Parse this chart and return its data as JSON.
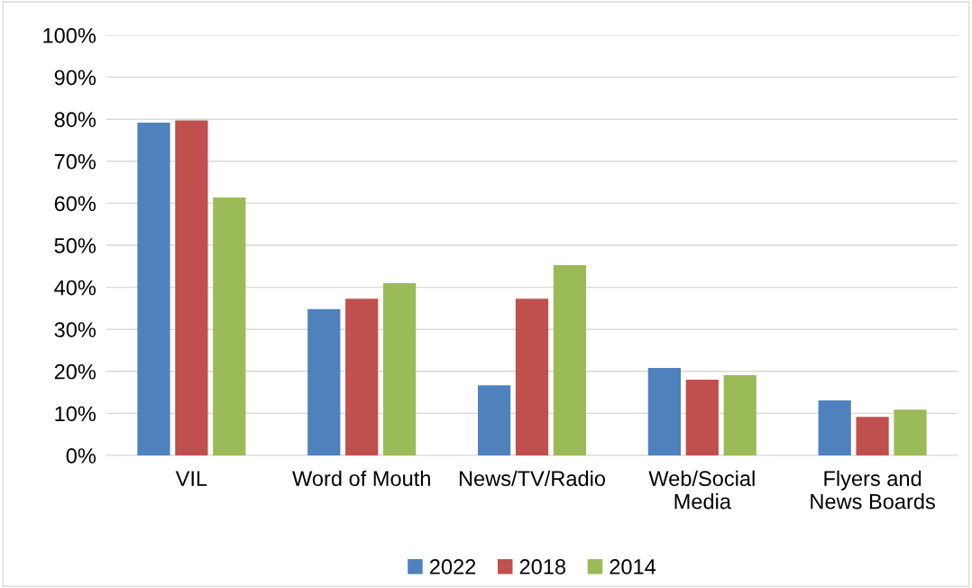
{
  "chart_data": {
    "type": "bar",
    "categories": [
      "VIL",
      "Word of Mouth",
      "News/TV/Radio",
      "Web/Social\nMedia",
      "Flyers and\nNews Boards"
    ],
    "series": [
      {
        "name": "2022",
        "color": "#4f81bd",
        "values": [
          79.2,
          34.8,
          16.7,
          20.8,
          13.1
        ]
      },
      {
        "name": "2018",
        "color": "#c0504d",
        "values": [
          79.7,
          37.3,
          37.3,
          18.0,
          9.2
        ]
      },
      {
        "name": "2014",
        "color": "#9bbb59",
        "values": [
          61.4,
          41.0,
          45.3,
          19.1,
          10.9
        ]
      }
    ],
    "ylim": [
      0,
      100
    ],
    "yticks": [
      {
        "value": 0,
        "label": "0%"
      },
      {
        "value": 10,
        "label": "10%"
      },
      {
        "value": 20,
        "label": "20%"
      },
      {
        "value": 30,
        "label": "30%"
      },
      {
        "value": 40,
        "label": "40%"
      },
      {
        "value": 50,
        "label": "50%"
      },
      {
        "value": 60,
        "label": "60%"
      },
      {
        "value": 70,
        "label": "70%"
      },
      {
        "value": 80,
        "label": "80%"
      },
      {
        "value": 90,
        "label": "90%"
      },
      {
        "value": 100,
        "label": "100%"
      }
    ],
    "grid": "y",
    "legend": "bottom"
  }
}
